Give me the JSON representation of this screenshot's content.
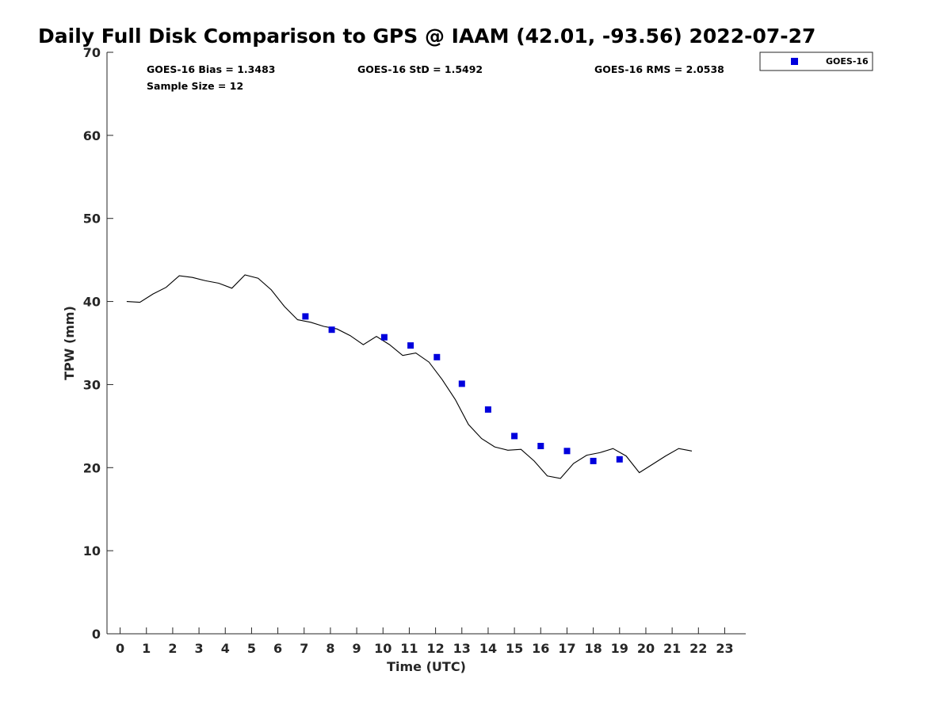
{
  "chart_data": {
    "type": "scatter",
    "title": "Daily Full Disk Comparison to GPS @ IAAM (42.01, -93.56) 2022-07-27",
    "xlabel": "Time (UTC)",
    "ylabel": "TPW (mm)",
    "xlim": [
      -0.5,
      23.8
    ],
    "ylim": [
      0,
      70
    ],
    "xticks": [
      0,
      1,
      2,
      3,
      4,
      5,
      6,
      7,
      8,
      9,
      10,
      11,
      12,
      13,
      14,
      15,
      16,
      17,
      18,
      19,
      20,
      21,
      22,
      23
    ],
    "yticks": [
      0,
      10,
      20,
      30,
      40,
      50,
      60,
      70
    ],
    "grid": false,
    "legend_position": "outside-top-right",
    "stats": {
      "bias": "GOES-16 Bias = 1.3483",
      "std": "GOES-16 StD = 1.5492",
      "rms": "GOES-16 RMS = 2.0538",
      "sample": "Sample Size = 12"
    },
    "series": [
      {
        "name": "GPS",
        "kind": "line",
        "color": "#000000",
        "x": [
          0.25,
          0.75,
          1.25,
          1.75,
          2.25,
          2.75,
          3.25,
          3.75,
          4.25,
          4.75,
          5.25,
          5.75,
          6.25,
          6.75,
          7.25,
          7.75,
          8.25,
          8.75,
          9.25,
          9.75,
          10.25,
          10.75,
          11.25,
          11.75,
          12.25,
          12.75,
          13.25,
          13.75,
          14.25,
          14.75,
          15.25,
          15.75,
          16.25,
          16.75,
          17.25,
          17.75,
          18.25,
          18.75,
          19.25,
          19.75,
          20.25,
          20.75,
          21.25,
          21.75
        ],
        "y": [
          40.0,
          39.9,
          40.9,
          41.7,
          43.1,
          42.9,
          42.5,
          42.2,
          41.6,
          43.2,
          42.8,
          41.4,
          39.4,
          37.8,
          37.5,
          37.0,
          36.7,
          35.9,
          34.8,
          35.8,
          34.8,
          33.5,
          33.8,
          32.7,
          30.6,
          28.2,
          25.2,
          23.5,
          22.5,
          22.1,
          22.2,
          20.8,
          19.0,
          18.7,
          20.5,
          21.5,
          21.8,
          22.3,
          21.4,
          19.4,
          20.4,
          21.4,
          22.3,
          22.0
        ]
      },
      {
        "name": "GOES-16",
        "kind": "scatter",
        "color": "#0000dd",
        "x": [
          7.05,
          8.05,
          10.05,
          11.05,
          12.05,
          13.0,
          14.0,
          15.0,
          16.0,
          17.0,
          18.0,
          19.0
        ],
        "y": [
          38.2,
          36.6,
          35.7,
          34.7,
          33.3,
          30.1,
          27.0,
          23.8,
          22.6,
          22.0,
          20.8,
          21.0
        ]
      }
    ]
  },
  "legend": {
    "label": "GOES-16",
    "marker_color": "#0000dd"
  }
}
